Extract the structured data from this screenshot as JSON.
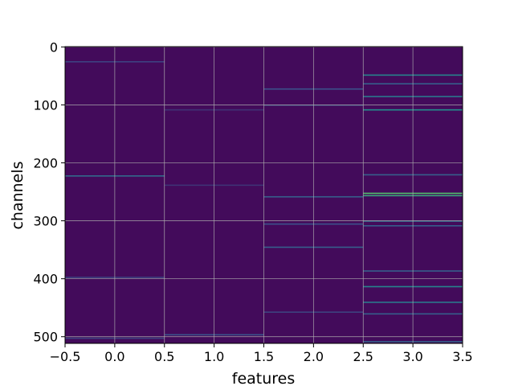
{
  "chart_data": {
    "type": "heatmap",
    "title": "",
    "xlabel": "features",
    "ylabel": "channels",
    "x_categories": [
      0,
      1,
      2,
      3
    ],
    "xlim": [
      -0.5,
      3.5
    ],
    "ylim": [
      511.5,
      -0.5
    ],
    "n_channels": 512,
    "y_inverted": true,
    "grid": true,
    "colormap": "viridis",
    "value_range": [
      0,
      1
    ],
    "background_value": 0.03,
    "x_ticks": [
      -0.5,
      0.0,
      0.5,
      1.0,
      1.5,
      2.0,
      2.5,
      3.0,
      3.5
    ],
    "x_tick_labels": [
      "−0.5",
      "0.0",
      "0.5",
      "1.0",
      "1.5",
      "2.0",
      "2.5",
      "3.0",
      "3.5"
    ],
    "y_ticks": [
      0,
      100,
      200,
      300,
      400,
      500
    ],
    "y_tick_labels": [
      "0",
      "100",
      "200",
      "300",
      "400",
      "500"
    ],
    "bright_cells": [
      {
        "feature": 0,
        "channel": 25,
        "value": 0.2
      },
      {
        "feature": 0,
        "channel": 222,
        "value": 0.35
      },
      {
        "feature": 0,
        "channel": 397,
        "value": 0.2
      },
      {
        "feature": 0,
        "channel": 502,
        "value": 0.2
      },
      {
        "feature": 1,
        "channel": 108,
        "value": 0.15
      },
      {
        "feature": 1,
        "channel": 238,
        "value": 0.15
      },
      {
        "feature": 1,
        "channel": 496,
        "value": 0.25
      },
      {
        "feature": 2,
        "channel": 72,
        "value": 0.25
      },
      {
        "feature": 2,
        "channel": 100,
        "value": 0.2
      },
      {
        "feature": 2,
        "channel": 258,
        "value": 0.3
      },
      {
        "feature": 2,
        "channel": 305,
        "value": 0.25
      },
      {
        "feature": 2,
        "channel": 345,
        "value": 0.3
      },
      {
        "feature": 2,
        "channel": 457,
        "value": 0.2
      },
      {
        "feature": 3,
        "channel": 48,
        "value": 0.45
      },
      {
        "feature": 3,
        "channel": 63,
        "value": 0.3
      },
      {
        "feature": 3,
        "channel": 85,
        "value": 0.4
      },
      {
        "feature": 3,
        "channel": 108,
        "value": 0.5
      },
      {
        "feature": 3,
        "channel": 220,
        "value": 0.3
      },
      {
        "feature": 3,
        "channel": 252,
        "value": 0.7
      },
      {
        "feature": 3,
        "channel": 256,
        "value": 0.6
      },
      {
        "feature": 3,
        "channel": 300,
        "value": 0.35
      },
      {
        "feature": 3,
        "channel": 308,
        "value": 0.3
      },
      {
        "feature": 3,
        "channel": 386,
        "value": 0.3
      },
      {
        "feature": 3,
        "channel": 413,
        "value": 0.45
      },
      {
        "feature": 3,
        "channel": 440,
        "value": 0.4
      },
      {
        "feature": 3,
        "channel": 460,
        "value": 0.3
      },
      {
        "feature": 3,
        "channel": 508,
        "value": 0.3
      }
    ]
  }
}
